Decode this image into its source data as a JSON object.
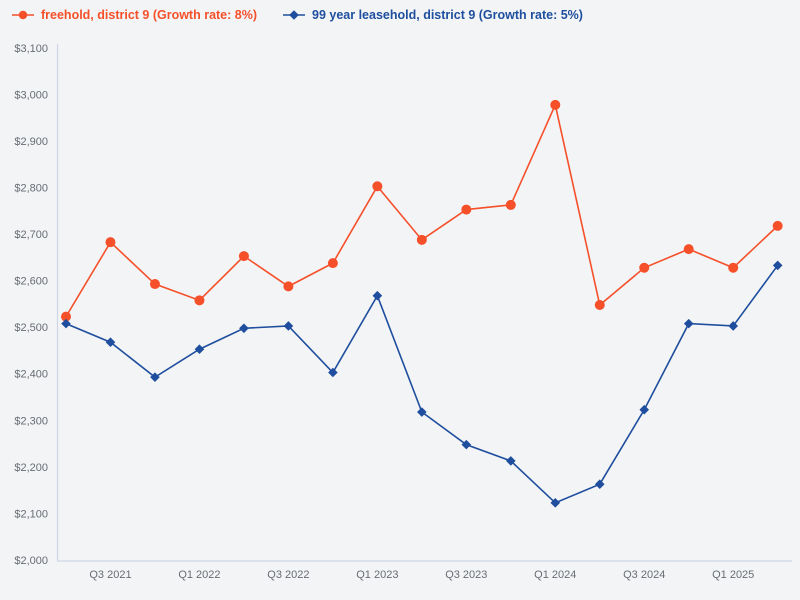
{
  "chart_data": {
    "type": "line",
    "title": "",
    "xlabel": "",
    "ylabel": "",
    "x": [
      "Q2 2021",
      "Q3 2021",
      "Q4 2021",
      "Q1 2022",
      "Q2 2022",
      "Q3 2022",
      "Q4 2022",
      "Q1 2023",
      "Q2 2023",
      "Q3 2023",
      "Q4 2023",
      "Q1 2024",
      "Q2 2024",
      "Q3 2024",
      "Q4 2024",
      "Q1 2025",
      "Q2 2025"
    ],
    "x_ticks_shown": [
      "Q3 2021",
      "Q1 2022",
      "Q3 2022",
      "Q1 2023",
      "Q3 2023",
      "Q1 2024",
      "Q3 2024",
      "Q1 2025"
    ],
    "series": [
      {
        "name": "freehold, district 9 (Growth rate: 8%)",
        "color": "#f5502a",
        "marker": "circle",
        "values": [
          2525,
          2685,
          2595,
          2560,
          2655,
          2590,
          2640,
          2805,
          2690,
          2755,
          2765,
          2980,
          2550,
          2630,
          2670,
          2630,
          2720
        ]
      },
      {
        "name": "99 year leasehold, district 9 (Growth rate: 5%)",
        "color": "#1e4e9d",
        "marker": "diamond",
        "values": [
          2510,
          2470,
          2395,
          2455,
          2500,
          2505,
          2405,
          2570,
          2320,
          2250,
          2215,
          2125,
          2165,
          2325,
          2510,
          2505,
          2635
        ]
      }
    ],
    "ylim": [
      2000,
      3100
    ],
    "y_ticks": [
      {
        "value": 2000,
        "label": "$2,000"
      },
      {
        "value": 2100,
        "label": "$2,100"
      },
      {
        "value": 2200,
        "label": "$2,200"
      },
      {
        "value": 2300,
        "label": "$2,300"
      },
      {
        "value": 2400,
        "label": "$2,400"
      },
      {
        "value": 2500,
        "label": "$2,500"
      },
      {
        "value": 2600,
        "label": "$2,600"
      },
      {
        "value": 2700,
        "label": "$2,700"
      },
      {
        "value": 2800,
        "label": "$2,800"
      },
      {
        "value": 2900,
        "label": "$2,900"
      },
      {
        "value": 3000,
        "label": "$3,000"
      },
      {
        "value": 3100,
        "label": "$3,100"
      }
    ],
    "grid": false,
    "legend_position": "top-left"
  },
  "colors": {
    "background": "#f3f4f6",
    "axis_line": "#cfd7e6",
    "tick_label": "#676c74"
  }
}
